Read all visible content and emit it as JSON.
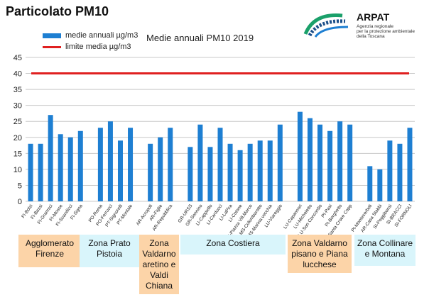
{
  "page_title": "Particolato PM10",
  "logo": {
    "name": "ARPAT",
    "subtitle_lines": [
      "Agenzia regionale",
      "per la protezione ambientale",
      "della Toscana"
    ]
  },
  "colors": {
    "bar": "#1e7fd2",
    "limit_line": "#e02020",
    "grid": "#c8c8c8",
    "zone_orange": "#fcd4a8",
    "zone_cyan": "#d9f5fb"
  },
  "chart_data": {
    "type": "bar",
    "title": "Medie annuali PM10 2019",
    "legend": {
      "placement": "top-left",
      "bar_label": "medie annuali µg/m3",
      "line_label": "limite media µg/m3"
    },
    "ylim": [
      0,
      45
    ],
    "yticks": [
      0,
      5,
      10,
      15,
      20,
      25,
      30,
      35,
      40,
      45
    ],
    "grid": true,
    "limit_value": 40,
    "categories": [
      "FI-Bolzi",
      "FI-Bassi",
      "FI-Gramsci",
      "FI-Mosse",
      "FI-Scandicci",
      "FI-Signa",
      "",
      "PO-Roma",
      "PO-Ferrucci",
      "PT-Signorelli",
      "PT-Montale",
      "",
      "AR-Acropoli",
      "AR-Figlie",
      "AR-Repubblica",
      "",
      "GR-URSS",
      "GR-Sonnino",
      "LI-Cappiello",
      "LI-Carducci",
      "LI-LaPira",
      "LI-Cotone",
      "LI-Piazza Vill.Marco",
      "MS-Colombarotto",
      "MS-Marina vecchia",
      "LU-Viareggio",
      "",
      "LU-Capannori",
      "LU-Micheletto",
      "LU-San Concordio",
      "PI-Pasi",
      "PI-Borghetto",
      "FI-Santa Croce Copp",
      "",
      "PI-Montecerboli",
      "AR-Casa Stabbi",
      "SI-Poggibonsi",
      "SI-BRACCI",
      "SI-FORNOLI"
    ],
    "values": [
      18,
      18,
      27,
      21,
      20,
      22,
      null,
      23,
      25,
      19,
      23,
      null,
      18,
      20,
      23,
      null,
      17,
      24,
      17,
      23,
      18,
      16,
      18,
      19,
      19,
      24,
      null,
      28,
      26,
      24,
      22,
      25,
      24,
      null,
      11,
      10,
      19,
      18,
      23
    ]
  },
  "zones": [
    {
      "label": "Agglomerato Firenze",
      "color": "orange"
    },
    {
      "label": "Zona Prato Pistoia",
      "color": "cyan"
    },
    {
      "label": "Zona Valdarno aretino e Valdi Chiana",
      "color": "orange"
    },
    {
      "label": "Zona Costiera",
      "color": "cyan"
    },
    {
      "label": "Zona Valdarno pisano e Piana lucchese",
      "color": "orange"
    },
    {
      "label": "Zona Collinare e Montana",
      "color": "cyan"
    }
  ]
}
